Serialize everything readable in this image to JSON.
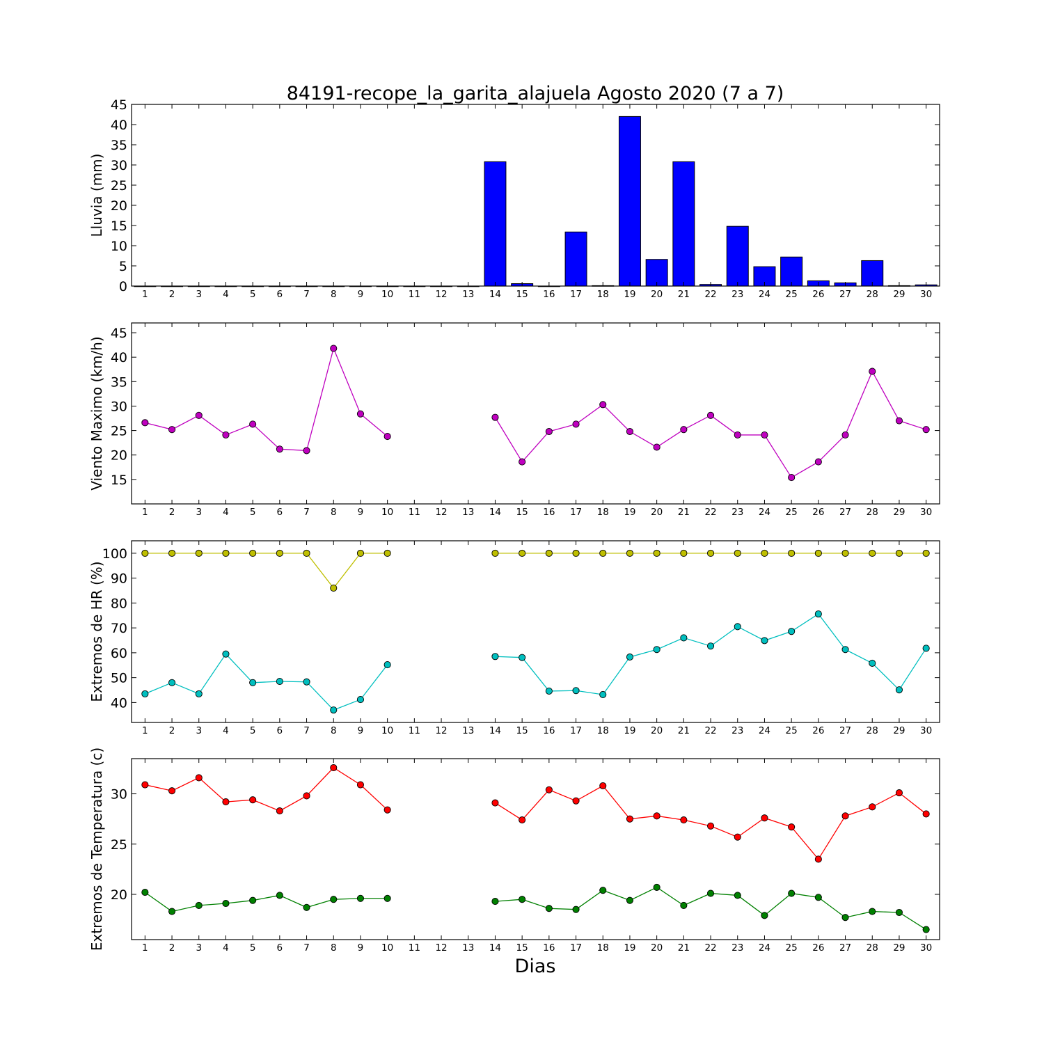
{
  "title": "84191-recope_la_garita_alajuela Agosto 2020  (7 a 7)",
  "xlabel": "Dias",
  "colors": {
    "rain_bar": "#0000ff",
    "wind": "#bf00bf",
    "hr_max": "#bfbf00",
    "hr_min": "#00bfbf",
    "temp_max": "#ff0000",
    "temp_min": "#008000"
  },
  "chart_data": [
    {
      "type": "bar",
      "ylabel": "Lluvia (mm)",
      "ylim": [
        0,
        45
      ],
      "yticks": [
        0,
        5,
        10,
        15,
        20,
        25,
        30,
        35,
        40,
        45
      ],
      "x": [
        1,
        2,
        3,
        4,
        5,
        6,
        7,
        8,
        9,
        10,
        11,
        12,
        13,
        14,
        15,
        16,
        17,
        18,
        19,
        20,
        21,
        22,
        23,
        24,
        25,
        26,
        27,
        28,
        29,
        30
      ],
      "series": [
        {
          "values": [
            0,
            0,
            0,
            0,
            0,
            0,
            0,
            0,
            0,
            0,
            0,
            0,
            0,
            30.8,
            0.6,
            0,
            13.4,
            0.1,
            42.0,
            6.6,
            30.8,
            0.4,
            14.8,
            4.8,
            7.2,
            1.3,
            0.8,
            6.3,
            0.1,
            0.3
          ]
        }
      ]
    },
    {
      "type": "line",
      "ylabel": "Viento Maximo (km/h)",
      "ylim": [
        10,
        47
      ],
      "yticks": [
        15,
        20,
        25,
        30,
        35,
        40,
        45
      ],
      "x": [
        1,
        2,
        3,
        4,
        5,
        6,
        7,
        8,
        9,
        10,
        11,
        12,
        13,
        14,
        15,
        16,
        17,
        18,
        19,
        20,
        21,
        22,
        23,
        24,
        25,
        26,
        27,
        28,
        29,
        30
      ],
      "series": [
        {
          "values": [
            26.6,
            25.2,
            28.1,
            24.1,
            26.3,
            21.2,
            20.9,
            41.8,
            28.4,
            23.8,
            null,
            null,
            null,
            27.7,
            18.6,
            24.8,
            26.3,
            30.3,
            24.8,
            21.6,
            25.2,
            28.1,
            24.1,
            24.1,
            15.4,
            18.6,
            24.1,
            37.1,
            27.0,
            25.2
          ]
        }
      ]
    },
    {
      "type": "line",
      "ylabel": "Extremos de HR (%)",
      "ylim": [
        32,
        105
      ],
      "yticks": [
        40,
        50,
        60,
        70,
        80,
        90,
        100
      ],
      "x": [
        1,
        2,
        3,
        4,
        5,
        6,
        7,
        8,
        9,
        10,
        11,
        12,
        13,
        14,
        15,
        16,
        17,
        18,
        19,
        20,
        21,
        22,
        23,
        24,
        25,
        26,
        27,
        28,
        29,
        30
      ],
      "series": [
        {
          "values": [
            100,
            100,
            100,
            100,
            100,
            100,
            100,
            86,
            100,
            100,
            null,
            null,
            null,
            100,
            100,
            100,
            100,
            100,
            100,
            100,
            100,
            100,
            100,
            100,
            100,
            100,
            100,
            100,
            100,
            100
          ]
        },
        {
          "values": [
            43.5,
            48.0,
            43.5,
            59.5,
            48.0,
            48.5,
            48.3,
            37.0,
            41.2,
            55.2,
            null,
            null,
            null,
            58.5,
            58.1,
            44.6,
            44.8,
            43.2,
            58.3,
            61.3,
            66.0,
            62.7,
            70.5,
            64.9,
            68.6,
            75.6,
            61.3,
            55.8,
            45.1,
            61.8
          ]
        }
      ]
    },
    {
      "type": "line",
      "ylabel": "Extremos de Temperatura (c)",
      "ylim": [
        15.5,
        33.5
      ],
      "yticks": [
        20,
        25,
        30
      ],
      "x": [
        1,
        2,
        3,
        4,
        5,
        6,
        7,
        8,
        9,
        10,
        11,
        12,
        13,
        14,
        15,
        16,
        17,
        18,
        19,
        20,
        21,
        22,
        23,
        24,
        25,
        26,
        27,
        28,
        29,
        30
      ],
      "series": [
        {
          "values": [
            30.9,
            30.3,
            31.6,
            29.2,
            29.4,
            28.3,
            29.8,
            32.6,
            30.9,
            28.4,
            null,
            null,
            null,
            29.1,
            27.4,
            30.4,
            29.3,
            30.8,
            27.5,
            27.8,
            27.4,
            26.8,
            25.7,
            27.6,
            26.7,
            23.5,
            27.8,
            28.7,
            30.1,
            28.0
          ]
        },
        {
          "values": [
            20.2,
            18.3,
            18.9,
            19.1,
            19.4,
            19.9,
            18.7,
            19.5,
            19.6,
            19.6,
            null,
            null,
            null,
            19.3,
            19.5,
            18.6,
            18.5,
            20.4,
            19.4,
            20.7,
            18.9,
            20.1,
            19.9,
            17.9,
            20.1,
            19.7,
            17.7,
            18.3,
            18.2,
            16.5
          ]
        }
      ]
    }
  ]
}
